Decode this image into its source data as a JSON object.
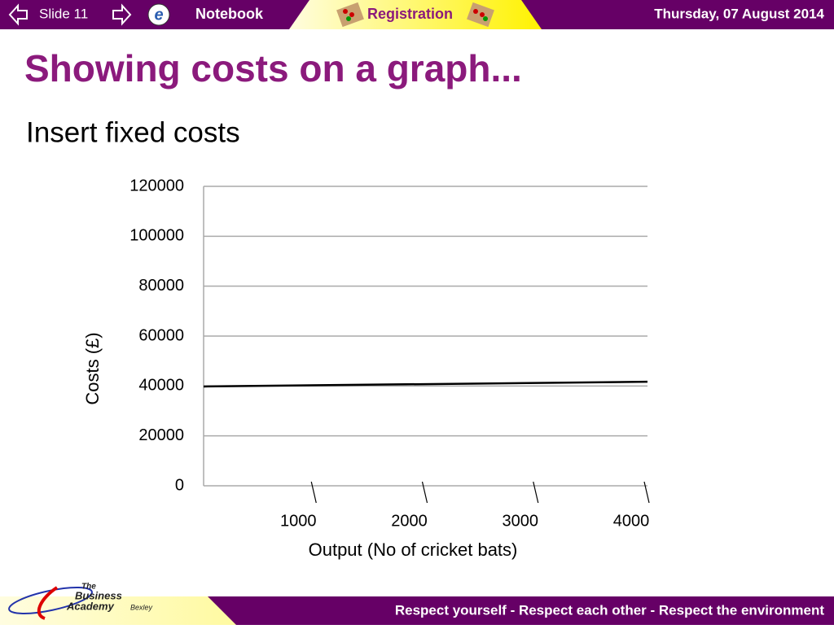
{
  "header": {
    "slide": "Slide 11",
    "notebook": "Notebook",
    "registration": "Registration",
    "date": "Thursday, 07 August 2014"
  },
  "title": "Showing costs on a graph...",
  "subtitle": "Insert fixed costs",
  "chart_data": {
    "type": "line",
    "x": [
      0,
      4000
    ],
    "values": [
      39800,
      41700
    ],
    "color": "#000000",
    "xlim": [
      0,
      4000
    ],
    "xticks": [
      1000,
      2000,
      3000,
      4000
    ],
    "ylim": [
      0,
      120000
    ],
    "yticks": [
      0,
      20000,
      40000,
      60000,
      80000,
      100000,
      120000
    ],
    "grid": true,
    "x_label": "Output (No of cricket bats)",
    "y_label": "Costs (£)"
  },
  "logo": {
    "line1": "The",
    "line2": "Business",
    "line3": "Academy",
    "line4": "Bexley"
  },
  "footer": "Respect yourself - Respect each other - Respect the environment"
}
